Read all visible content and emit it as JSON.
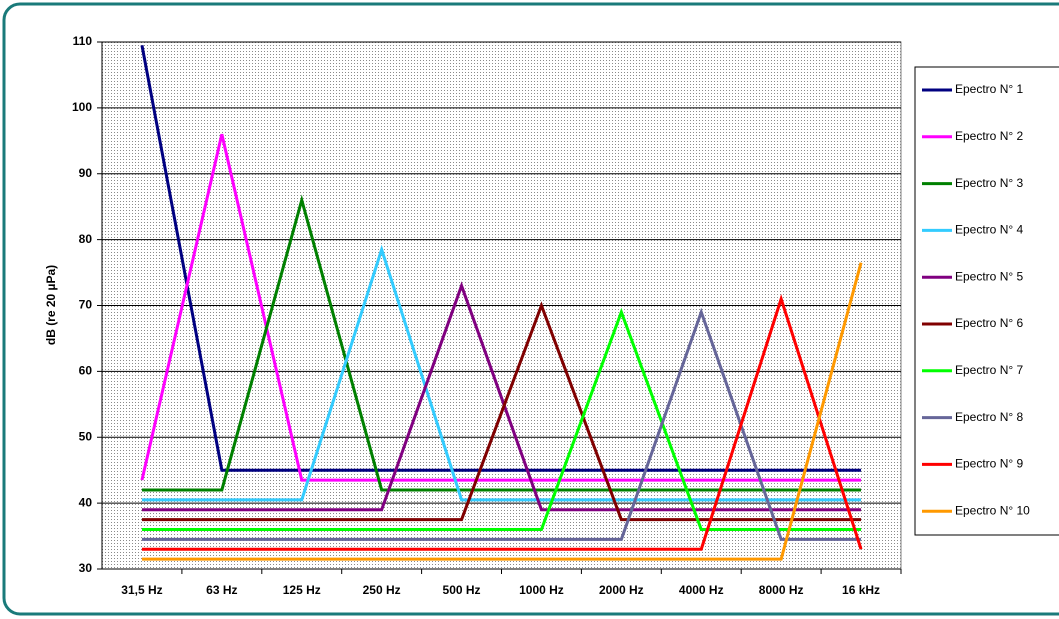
{
  "chart_data": {
    "type": "line",
    "y_label": "dB (re 20 µPa)",
    "categories": [
      "31,5 Hz",
      "63 Hz",
      "125 Hz",
      "250 Hz",
      "500 Hz",
      "1000 Hz",
      "2000 Hz",
      "4000 Hz",
      "8000 Hz",
      "16 kHz"
    ],
    "series": [
      {
        "name": "Epectro N° 1",
        "color": "#000080",
        "values": [
          109.5,
          45,
          45,
          45,
          45,
          45,
          45,
          45,
          45,
          45
        ]
      },
      {
        "name": "Epectro N° 2",
        "color": "#ff00ff",
        "values": [
          43.5,
          96,
          43.5,
          43.5,
          43.5,
          43.5,
          43.5,
          43.5,
          43.5,
          43.5
        ]
      },
      {
        "name": "Epectro N° 3",
        "color": "#008000",
        "values": [
          42,
          42,
          86,
          42,
          42,
          42,
          42,
          42,
          42,
          42
        ]
      },
      {
        "name": "Epectro N° 4",
        "color": "#33ccff",
        "values": [
          40.5,
          40.5,
          40.5,
          78.5,
          40.5,
          40.5,
          40.5,
          40.5,
          40.5,
          40.5
        ]
      },
      {
        "name": "Epectro N° 5",
        "color": "#800080",
        "values": [
          39,
          39,
          39,
          39,
          73,
          39,
          39,
          39,
          39,
          39
        ]
      },
      {
        "name": "Epectro N° 6",
        "color": "#800000",
        "values": [
          37.5,
          37.5,
          37.5,
          37.5,
          37.5,
          70,
          37.5,
          37.5,
          37.5,
          37.5
        ]
      },
      {
        "name": "Epectro N° 7",
        "color": "#00ff00",
        "values": [
          36,
          36,
          36,
          36,
          36,
          36,
          69,
          36,
          36,
          36
        ]
      },
      {
        "name": "Epectro N° 8",
        "color": "#666699",
        "values": [
          34.5,
          34.5,
          34.5,
          34.5,
          34.5,
          34.5,
          34.5,
          69,
          34.5,
          34.5
        ]
      },
      {
        "name": "Epectro N° 9",
        "color": "#ff0000",
        "values": [
          33,
          33,
          33,
          33,
          33,
          33,
          33,
          33,
          71,
          33
        ]
      },
      {
        "name": "Epectro N° 10",
        "color": "#ff9900",
        "values": [
          31.5,
          31.5,
          31.5,
          31.5,
          31.5,
          31.5,
          31.5,
          31.5,
          31.5,
          76.5
        ]
      }
    ],
    "ylim": [
      30,
      110
    ],
    "yticks": [
      30,
      40,
      50,
      60,
      70,
      80,
      90,
      100,
      110
    ],
    "grid": true,
    "legend": "right"
  }
}
